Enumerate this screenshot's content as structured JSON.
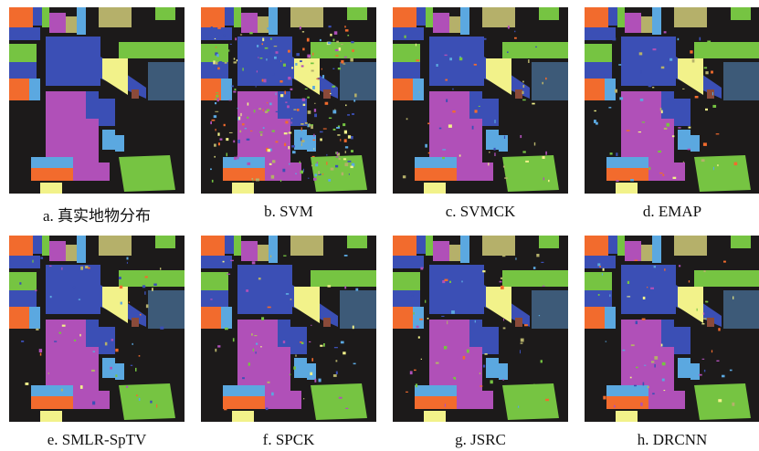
{
  "figure": {
    "panels": [
      {
        "caption": "a. 真实地物分布"
      },
      {
        "caption": "b. SVM"
      },
      {
        "caption": "c. SVMCK"
      },
      {
        "caption": "d. EMAP"
      },
      {
        "caption": "e. SMLR-SpTV"
      },
      {
        "caption": "f. SPCK"
      },
      {
        "caption": "g. JSRC"
      },
      {
        "caption": "h. DRCNN"
      }
    ]
  }
}
